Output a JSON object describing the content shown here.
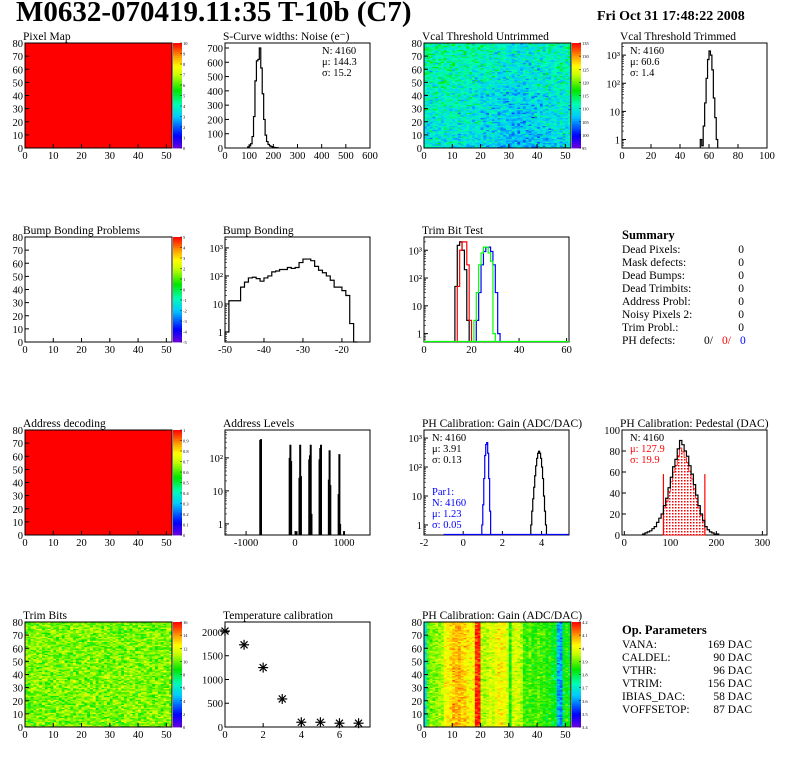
{
  "header": {
    "title": "M0632-070419.11:35 T-10b (C7)",
    "date": "Fri Oct 31 17:48:22 2008"
  },
  "summary": {
    "title": "Summary",
    "rows": [
      {
        "label": "Dead Pixels:",
        "value": "0"
      },
      {
        "label": "Mask defects:",
        "value": "0"
      },
      {
        "label": "Dead Bumps:",
        "value": "0"
      },
      {
        "label": "Dead Trimbits:",
        "value": "0"
      },
      {
        "label": "Address Probl:",
        "value": "0"
      },
      {
        "label": "Noisy Pixels 2:",
        "value": "0"
      },
      {
        "label": "Trim Probl.:",
        "value": "0"
      }
    ],
    "ph_defects": {
      "label": "PH defects:",
      "v1": "0/",
      "v2": "0/",
      "v3": "0",
      "c2": "#ff0000",
      "c3": "#0000ff"
    }
  },
  "op_parameters": {
    "title": "Op. Parameters",
    "rows": [
      {
        "label": "VANA:",
        "value": "169 DAC"
      },
      {
        "label": "CALDEL:",
        "value": "90 DAC"
      },
      {
        "label": "VTHR:",
        "value": "96 DAC"
      },
      {
        "label": "VTRIM:",
        "value": "156 DAC"
      },
      {
        "label": "IBIAS_DAC:",
        "value": "58 DAC"
      },
      {
        "label": "VOFFSETOP:",
        "value": "87 DAC"
      }
    ]
  },
  "chart_data": [
    {
      "type": "heatmap",
      "title": "Pixel Map",
      "xlim": [
        0,
        52
      ],
      "ylim": [
        0,
        80
      ],
      "xticks": [
        0,
        10,
        20,
        30,
        40,
        50
      ],
      "yticks": [
        0,
        10,
        20,
        30,
        40,
        50,
        60,
        70,
        80
      ],
      "zlim": [
        0,
        10
      ],
      "zticks": [
        "0",
        "1",
        "2",
        "3",
        "4",
        "5",
        "6",
        "7",
        "8",
        "9",
        "10"
      ],
      "uniform": 10
    },
    {
      "type": "bar",
      "title": "S-Curve widths: Noise (e⁻)",
      "xlim": [
        0,
        600
      ],
      "ylim": [
        0,
        735
      ],
      "xticks": [
        0,
        100,
        200,
        300,
        400,
        500,
        600
      ],
      "yticks": [
        0,
        100,
        200,
        300,
        400,
        500,
        600,
        700
      ],
      "bins": {
        "start": 94,
        "width": 6,
        "values": [
          8,
          15,
          30,
          80,
          220,
          470,
          610,
          620,
          700,
          560,
          380,
          200,
          90,
          45,
          25,
          15,
          10,
          6,
          4,
          3,
          2
        ]
      },
      "stats": [
        {
          "text": "N: 4160",
          "color": "#000000"
        },
        {
          "text": "μ: 144.3",
          "color": "#000000"
        },
        {
          "text": "σ: 15.2",
          "color": "#000000"
        }
      ],
      "stats_pos": "top-right"
    },
    {
      "type": "heatmap",
      "title": "Vcal Threshold Untrimmed",
      "xlim": [
        0,
        52
      ],
      "ylim": [
        0,
        80
      ],
      "xticks": [
        0,
        10,
        20,
        30,
        40,
        50
      ],
      "yticks": [
        0,
        10,
        20,
        30,
        40,
        50,
        60,
        70,
        80
      ],
      "zlim": [
        95,
        140
      ],
      "zticks": [
        "95",
        "100",
        "105",
        "110",
        "115",
        "120",
        "125",
        "130",
        "135"
      ],
      "mean": 111,
      "spread": 4
    },
    {
      "type": "bar",
      "title": "Vcal Threshold Trimmed",
      "xlim": [
        0,
        100
      ],
      "ylim": [
        0.5,
        2700
      ],
      "log": true,
      "xticks": [
        0,
        20,
        40,
        60,
        80,
        100
      ],
      "yticks": [
        1,
        10,
        100,
        1000
      ],
      "bins": {
        "start": 54,
        "width": 1,
        "values": [
          1,
          0.6,
          3,
          20,
          150,
          700,
          1400,
          1000,
          300,
          30,
          6,
          1
        ]
      },
      "stats": [
        {
          "text": "N: 4160",
          "color": "#000000"
        },
        {
          "text": "μ: 60.6",
          "color": "#000000"
        },
        {
          "text": "σ:  1.4",
          "color": "#000000"
        }
      ],
      "stats_pos": "top-left"
    },
    {
      "type": "heatmap",
      "title": "Bump Bonding Problems",
      "xlim": [
        0,
        52
      ],
      "ylim": [
        0,
        80
      ],
      "xticks": [
        0,
        10,
        20,
        30,
        40,
        50
      ],
      "yticks": [
        0,
        10,
        20,
        30,
        40,
        50,
        60,
        70,
        80
      ],
      "zlim": [
        -5,
        5
      ],
      "zticks": [
        "-5",
        "-4",
        "-3",
        "-2",
        "-1",
        "0",
        "1",
        "2",
        "3",
        "4",
        "5"
      ],
      "empty": true
    },
    {
      "type": "bar",
      "title": "Bump Bonding",
      "xlim": [
        -50,
        -12.8
      ],
      "ylim": [
        0.44,
        2450
      ],
      "log": true,
      "xticks": [
        -50,
        -40,
        -30,
        -20
      ],
      "yticks": [
        1,
        10,
        100,
        1000
      ],
      "bins": {
        "start": -50,
        "width": 1,
        "values": [
          1,
          13,
          13,
          13,
          40,
          60,
          85,
          90,
          80,
          65,
          85,
          100,
          140,
          150,
          170,
          170,
          200,
          185,
          200,
          300,
          400,
          400,
          350,
          220,
          160,
          130,
          100,
          70,
          40,
          40,
          30,
          20,
          2,
          0.4
        ]
      }
    },
    {
      "type": "bar",
      "title": "Trim Bit Test",
      "xlim": [
        0,
        61
      ],
      "ylim": [
        0.5,
        3000
      ],
      "log": true,
      "xticks": [
        0,
        20,
        40,
        60
      ],
      "yticks": [
        1,
        10,
        100,
        1000
      ],
      "series": [
        {
          "color": "#000000",
          "start": 13,
          "width": 1,
          "values": [
            50,
            1500,
            2000,
            1000,
            200,
            3
          ]
        },
        {
          "color": "#ff0000",
          "start": 14,
          "width": 1,
          "values": [
            50,
            1000,
            2000,
            2000,
            300,
            3
          ]
        },
        {
          "color": "#0000ff",
          "start": 22,
          "width": 1,
          "values": [
            3,
            30,
            300,
            900,
            1300,
            1300,
            900,
            300,
            30,
            1
          ]
        },
        {
          "color": "#00ff00",
          "start": 21,
          "width": 1,
          "values": [
            3,
            30,
            300,
            800,
            1300,
            1300,
            800,
            400,
            1
          ],
          "baseline": [
            0,
            61
          ]
        }
      ]
    },
    {
      "type": "heatmap",
      "title": "Address decoding",
      "xlim": [
        0,
        52
      ],
      "ylim": [
        0,
        80
      ],
      "xticks": [
        0,
        10,
        20,
        30,
        40,
        50
      ],
      "yticks": [
        0,
        10,
        20,
        30,
        40,
        50,
        60,
        70,
        80
      ],
      "zlim": [
        0,
        1
      ],
      "zticks": [
        "0",
        "0.1",
        "0.2",
        "0.3",
        "0.4",
        "0.5",
        "0.6",
        "0.7",
        "0.8",
        "0.9",
        "1"
      ],
      "uniform": 1
    },
    {
      "type": "bar",
      "title": "Address Levels",
      "xlim": [
        -1430,
        1530
      ],
      "ylim": [
        0.46,
        700
      ],
      "log": true,
      "xticks": [
        -1000,
        0,
        1000
      ],
      "yticks": [
        1,
        10,
        100
      ],
      "spikes": [
        [
          -710,
          350
        ],
        [
          -695,
          370
        ],
        [
          -110,
          100
        ],
        [
          -95,
          250
        ],
        [
          -80,
          80
        ],
        [
          30,
          0.6
        ],
        [
          90,
          25
        ],
        [
          105,
          250
        ],
        [
          120,
          28
        ],
        [
          290,
          90
        ],
        [
          305,
          120
        ],
        [
          320,
          250
        ],
        [
          335,
          2
        ],
        [
          500,
          90
        ],
        [
          515,
          200
        ],
        [
          530,
          250
        ],
        [
          690,
          22
        ],
        [
          705,
          170
        ],
        [
          720,
          15
        ],
        [
          890,
          8
        ],
        [
          905,
          130
        ],
        [
          920,
          1
        ],
        [
          1000,
          0.6
        ]
      ]
    },
    {
      "type": "bar",
      "title": "PH Calibration: Gain (ADC/DAC)",
      "xlim": [
        -2,
        5.4
      ],
      "ylim": [
        0.45,
        1900
      ],
      "log": true,
      "xticks": [
        -2,
        0,
        2,
        4
      ],
      "yticks": [
        1,
        10,
        100,
        1000
      ],
      "series": [
        {
          "color": "#000000",
          "start": 3.45,
          "width": 0.05,
          "values": [
            1,
            3,
            8,
            20,
            50,
            110,
            200,
            300,
            350,
            300,
            200,
            100,
            40,
            10,
            3,
            1
          ]
        },
        {
          "color": "#0000ff",
          "start": 0.95,
          "width": 0.05,
          "values": [
            1,
            5,
            40,
            250,
            600,
            700,
            300,
            40,
            3
          ],
          "baseline": [
            -1,
            5.4
          ]
        }
      ],
      "stats": [
        {
          "text": "N: 4160",
          "color": "#000000"
        },
        {
          "text": "μ: 3.91",
          "color": "#000000"
        },
        {
          "text": "σ: 0.13",
          "color": "#000000"
        }
      ],
      "stats2": [
        {
          "text": "Par1:",
          "color": "#0000ff"
        },
        {
          "text": "N: 4160",
          "color": "#0000ff"
        },
        {
          "text": "μ: 1.23",
          "color": "#0000ff"
        },
        {
          "text": "σ: 0.05",
          "color": "#0000ff"
        }
      ]
    },
    {
      "type": "bar",
      "title": "PH Calibration: Pedestal (DAC)",
      "xlim": [
        -5,
        310
      ],
      "ylim": [
        0,
        100
      ],
      "xticks": [
        0,
        100,
        200,
        300
      ],
      "yticks": [
        0,
        20,
        40,
        60,
        80,
        100
      ],
      "bins": {
        "start": 40,
        "width": 5,
        "values": [
          1,
          2,
          3,
          4,
          6,
          8,
          12,
          16,
          20,
          28,
          35,
          45,
          55,
          65,
          72,
          82,
          90,
          86,
          80,
          75,
          66,
          58,
          48,
          38,
          28,
          20,
          14,
          8,
          5,
          3,
          2,
          1,
          1
        ]
      },
      "fill": {
        "range": [
          85,
          175
        ],
        "color": "#ff0000",
        "line_height": 58
      },
      "stats": [
        {
          "text": "N: 4160",
          "color": "#000000"
        },
        {
          "text": "μ: 127.9",
          "color": "#ff0000"
        },
        {
          "text": "σ: 19.9",
          "color": "#ff0000"
        }
      ]
    },
    {
      "type": "heatmap",
      "title": "Trim Bits",
      "xlim": [
        0,
        52
      ],
      "ylim": [
        0,
        80
      ],
      "xticks": [
        0,
        10,
        20,
        30,
        40,
        50
      ],
      "yticks": [
        0,
        10,
        20,
        30,
        40,
        50,
        60,
        70,
        80
      ],
      "zlim": [
        0,
        16
      ],
      "zticks": [
        "0",
        "2",
        "4",
        "6",
        "8",
        "10",
        "12",
        "14",
        "16"
      ],
      "mean": 10.3,
      "spread": 1.3
    },
    {
      "type": "scatter",
      "title": "Temperature calibration",
      "xlim": [
        0,
        7.6
      ],
      "ylim": [
        0,
        2210
      ],
      "xticks": [
        0,
        2,
        4,
        6
      ],
      "yticks": [
        0,
        500,
        1000,
        1500,
        2000
      ],
      "points": [
        [
          0,
          2020
        ],
        [
          1,
          1730
        ],
        [
          2,
          1250
        ],
        [
          3,
          590
        ],
        [
          4,
          100
        ],
        [
          5,
          100
        ],
        [
          6,
          80
        ],
        [
          7,
          80
        ]
      ]
    },
    {
      "type": "heatmap",
      "title": "PH Calibration: Gain (ADC/DAC)",
      "xlim": [
        0,
        52
      ],
      "ylim": [
        0,
        80
      ],
      "xticks": [
        0,
        10,
        20,
        30,
        40,
        50
      ],
      "yticks": [
        0,
        10,
        20,
        30,
        40,
        50,
        60,
        70,
        80
      ],
      "zlim": [
        3.4,
        4.25
      ],
      "zticks": [
        "3.4",
        "3.5",
        "3.6",
        "3.7",
        "3.8",
        "3.9",
        "4",
        "4.1",
        "4.2"
      ],
      "spread": 0.05,
      "column_means": [
        3.7,
        3.92,
        3.95,
        3.95,
        3.96,
        3.97,
        3.98,
        4.05,
        4.06,
        4.08,
        4.12,
        4.12,
        4.13,
        4.1,
        4.1,
        4.08,
        4.05,
        4.05,
        4.22,
        4.22,
        4.0,
        3.98,
        4.0,
        4.02,
        4.0,
        4.05,
        4.06,
        4.06,
        4.04,
        4.02,
        3.88,
        4.0,
        4.02,
        4.0,
        3.98,
        3.9,
        3.9,
        3.92,
        3.9,
        3.9,
        3.92,
        3.9,
        3.9,
        3.88,
        3.9,
        3.85,
        3.85,
        3.65,
        3.62,
        3.85,
        3.88,
        3.85
      ]
    }
  ]
}
